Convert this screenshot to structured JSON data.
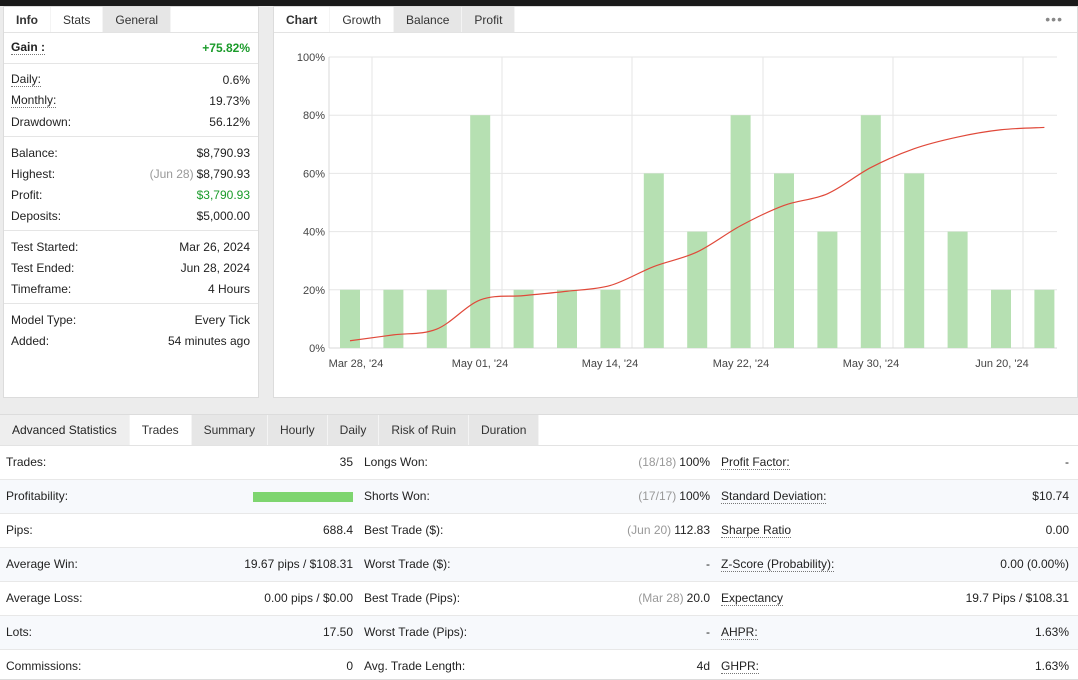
{
  "stats_panel": {
    "tabs": [
      {
        "label": "Info",
        "state": "label"
      },
      {
        "label": "Stats",
        "state": "active"
      },
      {
        "label": "General",
        "state": "inactive"
      }
    ],
    "gain": {
      "label": "Gain :",
      "value": "+75.82%"
    },
    "group1": [
      {
        "label": "Daily:",
        "value": "0.6%"
      },
      {
        "label": "Monthly:",
        "value": "19.73%"
      },
      {
        "label": "Drawdown:",
        "value": "56.12%"
      }
    ],
    "group2": [
      {
        "label": "Balance:",
        "value": "$8,790.93"
      },
      {
        "label": "Highest:",
        "note": "(Jun 28)",
        "value": "$8,790.93"
      },
      {
        "label": "Profit:",
        "value": "$3,790.93"
      },
      {
        "label": "Deposits:",
        "value": "$5,000.00"
      }
    ],
    "group3": [
      {
        "label": "Test Started:",
        "value": "Mar 26, 2024"
      },
      {
        "label": "Test Ended:",
        "value": "Jun 28, 2024"
      },
      {
        "label": "Timeframe:",
        "value": "4 Hours"
      }
    ],
    "group4": [
      {
        "label": "Model Type:",
        "value": "Every Tick"
      },
      {
        "label": "Added:",
        "value": "54 minutes ago"
      }
    ]
  },
  "chart_panel": {
    "tabs": [
      {
        "label": "Chart",
        "state": "label"
      },
      {
        "label": "Growth",
        "state": "active"
      },
      {
        "label": "Balance",
        "state": "inactive"
      },
      {
        "label": "Profit",
        "state": "inactive"
      }
    ],
    "menu_glyph": "•••"
  },
  "chart_data": {
    "type": "bar",
    "y_ticks": [
      "0%",
      "20%",
      "40%",
      "60%",
      "80%",
      "100%"
    ],
    "ylim": [
      0,
      100
    ],
    "x_tick_labels": [
      "Mar 28, '24",
      "May 01, '24",
      "May 14, '24",
      "May 22, '24",
      "May 30, '24",
      "Jun 20, '24"
    ],
    "grid": true,
    "legend": "none",
    "series": [
      {
        "type": "bar",
        "color": "#b6e0b2",
        "values": [
          20,
          20,
          20,
          80,
          20,
          20,
          20,
          60,
          40,
          80,
          60,
          40,
          80,
          60,
          40,
          20,
          20
        ]
      },
      {
        "type": "line",
        "color": "#e0493a",
        "values": [
          2.5,
          4.5,
          6.5,
          16.5,
          18,
          19.5,
          21.5,
          28,
          33,
          42,
          49,
          53,
          62,
          68.5,
          72.5,
          75,
          75.8
        ]
      }
    ]
  },
  "advanced": {
    "tabs": [
      {
        "label": "Advanced Statistics",
        "state": "label"
      },
      {
        "label": "Trades",
        "state": "active"
      },
      {
        "label": "Summary",
        "state": "inactive"
      },
      {
        "label": "Hourly",
        "state": "inactive"
      },
      {
        "label": "Daily",
        "state": "inactive"
      },
      {
        "label": "Risk of Ruin",
        "state": "inactive"
      },
      {
        "label": "Duration",
        "state": "inactive"
      }
    ],
    "rows": [
      [
        {
          "label": "Trades:",
          "value": "35"
        },
        {
          "label": "Longs Won:",
          "note": "(18/18)",
          "value": "100%"
        },
        {
          "label": "Profit Factor:",
          "value": "-",
          "u": true
        }
      ],
      [
        {
          "label": "Profitability:",
          "bar": 100
        },
        {
          "label": "Shorts Won:",
          "note": "(17/17)",
          "value": "100%"
        },
        {
          "label": "Standard Deviation:",
          "value": "$10.74",
          "u": true
        }
      ],
      [
        {
          "label": "Pips:",
          "value": "688.4"
        },
        {
          "label": "Best Trade ($):",
          "note": "(Jun 20)",
          "value": "112.83"
        },
        {
          "label": "Sharpe Ratio",
          "value": "0.00",
          "u": true
        }
      ],
      [
        {
          "label": "Average Win:",
          "value": "19.67 pips / $108.31"
        },
        {
          "label": "Worst Trade ($):",
          "value": "-"
        },
        {
          "label": "Z-Score (Probability):",
          "value": "0.00 (0.00%)",
          "u": true
        }
      ],
      [
        {
          "label": "Average Loss:",
          "value": "0.00 pips / $0.00"
        },
        {
          "label": "Best Trade (Pips):",
          "note": "(Mar 28)",
          "value": "20.0"
        },
        {
          "label": "Expectancy",
          "value": "19.7 Pips / $108.31",
          "u": true
        }
      ],
      [
        {
          "label": "Lots:",
          "value": "17.50"
        },
        {
          "label": "Worst Trade (Pips):",
          "value": "-"
        },
        {
          "label": "AHPR:",
          "value": "1.63%",
          "u": true
        }
      ],
      [
        {
          "label": "Commissions:",
          "value": "0"
        },
        {
          "label": "Avg. Trade Length:",
          "value": "4d"
        },
        {
          "label": "GHPR:",
          "value": "1.63%",
          "u": true
        }
      ]
    ]
  }
}
